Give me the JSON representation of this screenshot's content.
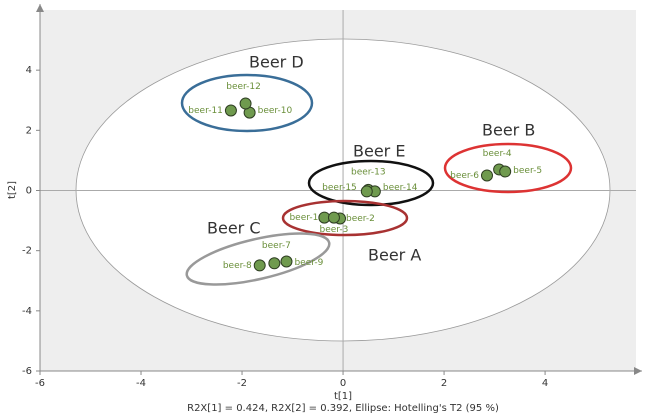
{
  "chart_data": {
    "type": "scatter",
    "x_label": "t[1]",
    "y_label": "t[2]",
    "footer": "R2X[1] = 0.424, R2X[2] = 0.392, Ellipse: Hotelling's T2 (95 %)",
    "series": [
      {
        "color": "#6f9a4e",
        "labels": [
          "beer-1",
          "beer-2",
          "beer-3",
          "beer-4",
          "beer-5",
          "beer-6",
          "beer-7",
          "beer-8",
          "beer-9",
          "beer-10",
          "beer-11",
          "beer-12",
          "beer-13",
          "beer-14",
          "beer-15"
        ],
        "x": [
          -0.37,
          -0.06,
          -0.18,
          3.09,
          3.21,
          2.85,
          -1.36,
          -1.65,
          -1.12,
          -1.85,
          -2.22,
          -1.93,
          0.5,
          0.63,
          0.47
        ],
        "values": [
          -0.9,
          -0.93,
          -0.9,
          0.7,
          0.63,
          0.5,
          -2.42,
          -2.49,
          -2.36,
          2.59,
          2.66,
          2.89,
          0.02,
          -0.03,
          -0.03
        ]
      }
    ],
    "annotations": [
      "Beer A",
      "Beer B",
      "Beer C",
      "Beer D",
      "Beer E"
    ],
    "xlim": [
      -6,
      5.8
    ],
    "ylim": [
      -6,
      6
    ],
    "xticks": [
      -6,
      -4,
      -2,
      0,
      2,
      4
    ],
    "yticks": [
      -6,
      -4,
      -2,
      0,
      2,
      4
    ]
  }
}
